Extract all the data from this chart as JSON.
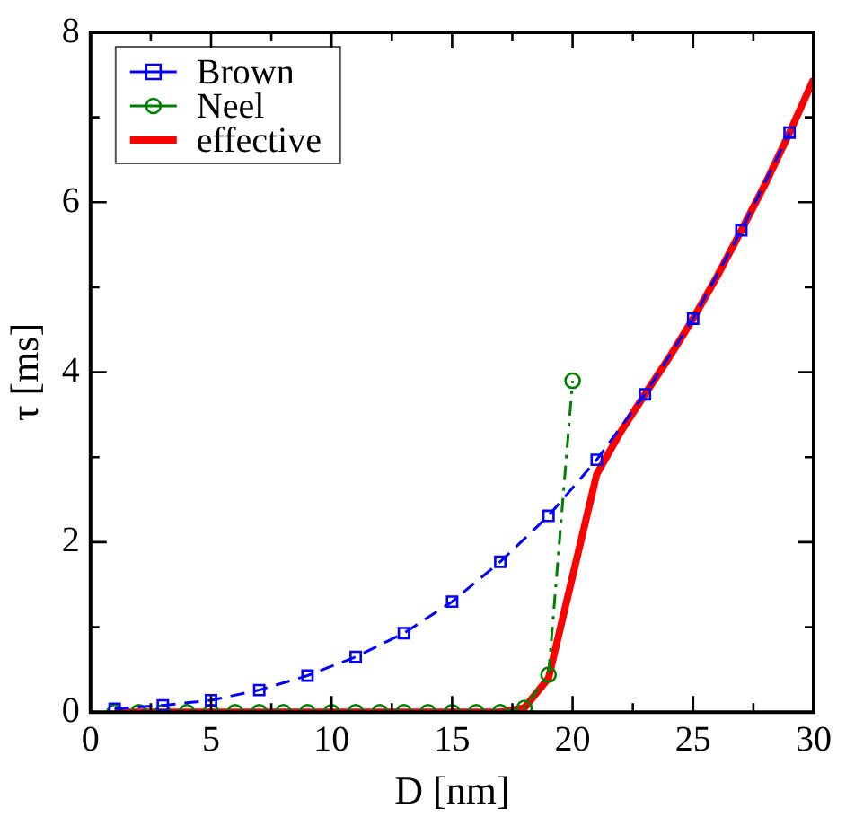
{
  "chart_data": {
    "type": "line",
    "xlabel": "D [nm]",
    "ylabel": "τ [ms]",
    "xlim": [
      0,
      30
    ],
    "ylim": [
      0,
      8
    ],
    "xticks": [
      0,
      {
        "value": 2.5,
        "label": null
      },
      5,
      {
        "value": 7.5,
        "label": null
      },
      10,
      {
        "value": 12.5,
        "label": null
      },
      15,
      {
        "value": 17.5,
        "label": null
      },
      20,
      {
        "value": 22.5,
        "label": null
      },
      25,
      {
        "value": 27.5,
        "label": null
      },
      30
    ],
    "yticks": [
      0,
      {
        "value": 1,
        "label": null
      },
      2,
      {
        "value": 3,
        "label": null
      },
      4,
      {
        "value": 5,
        "label": null
      },
      6,
      {
        "value": 7,
        "label": null
      },
      8
    ],
    "grid": false,
    "legend": "top left",
    "series": [
      {
        "name": "Brown",
        "color": "#0000ff",
        "marker": "square",
        "line_style": "dashed",
        "x": [
          1,
          3,
          5,
          7,
          9,
          11,
          13,
          15,
          17,
          19,
          21,
          23,
          25,
          27,
          29
        ],
        "values": [
          0.04,
          0.08,
          0.14,
          0.26,
          0.43,
          0.65,
          0.93,
          1.3,
          1.77,
          2.31,
          2.97,
          3.74,
          4.63,
          5.67,
          6.82
        ]
      },
      {
        "name": "Neel",
        "color": "#008000",
        "marker": "circle",
        "line_style": "dashdot",
        "x": [
          1,
          2,
          3,
          4,
          5,
          6,
          7,
          8,
          9,
          10,
          11,
          12,
          13,
          14,
          15,
          16,
          17,
          18,
          19,
          20
        ],
        "values": [
          0,
          0,
          0,
          0,
          0,
          0,
          0,
          0,
          0,
          0,
          0,
          0,
          0,
          0,
          0,
          0,
          0,
          0.05,
          0.44,
          3.9
        ]
      },
      {
        "name": "effective",
        "color": "#ff0000",
        "marker": "none",
        "line_style": "solid",
        "x": [
          1,
          17,
          18,
          19,
          20,
          21,
          22,
          23,
          24,
          25,
          26,
          27,
          28,
          29,
          30
        ],
        "values": [
          0,
          0,
          0.05,
          0.4,
          1.6,
          2.8,
          3.3,
          3.74,
          4.17,
          4.63,
          5.13,
          5.67,
          6.22,
          6.82,
          7.45
        ]
      }
    ]
  }
}
